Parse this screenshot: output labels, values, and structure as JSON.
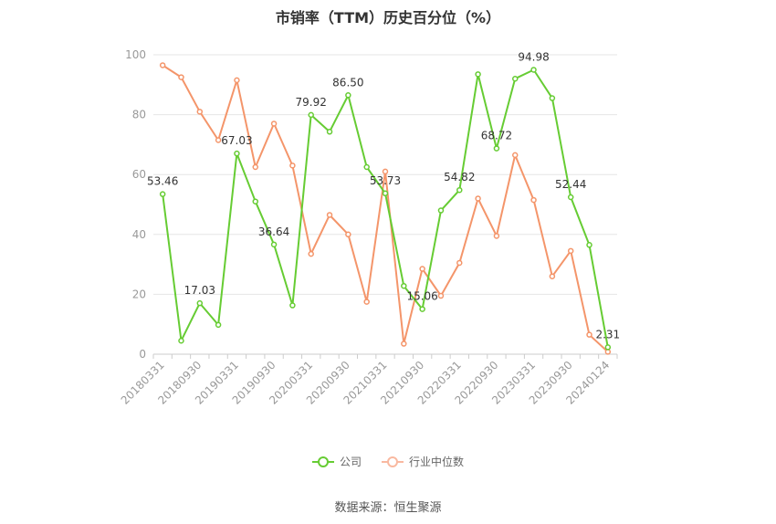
{
  "chart_data": {
    "type": "line",
    "title": "市销率（TTM）历史百分位（%）",
    "ylim": [
      0,
      100
    ],
    "yticks": [
      0,
      20,
      40,
      60,
      80,
      100
    ],
    "grid": true,
    "legend_position": "bottom",
    "x": [
      "20180331",
      "20180630",
      "20180930",
      "20181231",
      "20190331",
      "20190630",
      "20190930",
      "20191231",
      "20200331",
      "20200630",
      "20200930",
      "20201231",
      "20210331",
      "20210630",
      "20210930",
      "20211231",
      "20220331",
      "20220630",
      "20220930",
      "20221231",
      "20230331",
      "20230630",
      "20230930",
      "20231231",
      "20240124"
    ],
    "xtick_labels": [
      "20180331",
      "20180930",
      "20190331",
      "20190930",
      "20200331",
      "20200930",
      "20210331",
      "20210930",
      "20220331",
      "20220930",
      "20230331",
      "20230930",
      "20240124"
    ],
    "series": [
      {
        "name": "公司",
        "color": "#66cc33",
        "values": [
          53.46,
          4.5,
          17.03,
          9.8,
          67.03,
          51.0,
          36.64,
          16.3,
          79.92,
          74.3,
          86.5,
          62.5,
          53.73,
          22.8,
          15.06,
          48.0,
          54.82,
          93.5,
          68.72,
          92.0,
          94.98,
          85.5,
          52.44,
          36.5,
          2.31
        ],
        "labels": [
          "53.46",
          "",
          "17.03",
          "",
          "67.03",
          "",
          "36.64",
          "",
          "79.92",
          "",
          "86.50",
          "",
          "53.73",
          "",
          "15.06",
          "",
          "54.82",
          "",
          "68.72",
          "",
          "94.98",
          "",
          "52.44",
          "",
          "2.31"
        ]
      },
      {
        "name": "行业中位数",
        "color": "#f4956a",
        "values": [
          96.5,
          92.5,
          81.0,
          71.5,
          91.5,
          62.5,
          77.0,
          63.0,
          33.5,
          46.5,
          40.0,
          17.5,
          61.0,
          3.5,
          28.5,
          19.5,
          30.5,
          52.0,
          39.5,
          66.5,
          51.5,
          26.0,
          34.5,
          6.5,
          0.8
        ]
      }
    ]
  },
  "legend": {
    "items": [
      {
        "label": "公司",
        "color": "#66cc33"
      },
      {
        "label": "行业中位数",
        "color": "#f4956a"
      }
    ]
  },
  "footer": {
    "source": "数据来源：恒生聚源"
  }
}
